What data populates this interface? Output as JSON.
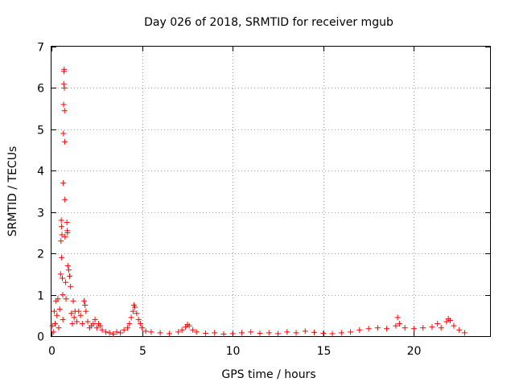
{
  "chart_data": {
    "type": "scatter",
    "title": "Day 026 of 2018, SRMTID for receiver mgub",
    "xlabel": "GPS time / hours",
    "ylabel": "SRMTID / TECUs",
    "xlim": [
      0,
      24.2
    ],
    "ylim": [
      0,
      7
    ],
    "grid": true,
    "marker": "+",
    "color": "#ff0000",
    "x_ticks": [
      0,
      5,
      10,
      15,
      20
    ],
    "y_ticks": [
      0,
      1,
      2,
      3,
      4,
      5,
      6,
      7
    ],
    "series": [
      {
        "name": "SRMTID",
        "points": [
          [
            0.05,
            0.25
          ],
          [
            0.1,
            0.1
          ],
          [
            0.15,
            0.6
          ],
          [
            0.2,
            0.3
          ],
          [
            0.25,
            0.85
          ],
          [
            0.3,
            0.5
          ],
          [
            0.35,
            0.9
          ],
          [
            0.4,
            0.2
          ],
          [
            0.45,
            0.65
          ],
          [
            0.5,
            1.5
          ],
          [
            0.52,
            2.3
          ],
          [
            0.54,
            2.8
          ],
          [
            0.55,
            2.65
          ],
          [
            0.56,
            1.9
          ],
          [
            0.58,
            2.45
          ],
          [
            0.6,
            1.4
          ],
          [
            0.62,
            1.0
          ],
          [
            0.63,
            0.4
          ],
          [
            0.65,
            3.7
          ],
          [
            0.66,
            4.9
          ],
          [
            0.67,
            5.6
          ],
          [
            0.68,
            6.1
          ],
          [
            0.69,
            6.4
          ],
          [
            0.7,
            6.45
          ],
          [
            0.71,
            6.0
          ],
          [
            0.72,
            5.45
          ],
          [
            0.73,
            4.7
          ],
          [
            0.74,
            3.3
          ],
          [
            0.75,
            2.4
          ],
          [
            0.78,
            1.3
          ],
          [
            0.8,
            0.9
          ],
          [
            0.85,
            2.75
          ],
          [
            0.87,
            2.55
          ],
          [
            0.88,
            2.5
          ],
          [
            0.9,
            1.7
          ],
          [
            0.95,
            1.6
          ],
          [
            1.0,
            1.45
          ],
          [
            1.05,
            1.2
          ],
          [
            1.1,
            0.55
          ],
          [
            1.15,
            0.3
          ],
          [
            1.2,
            0.85
          ],
          [
            1.25,
            0.45
          ],
          [
            1.3,
            0.6
          ],
          [
            1.4,
            0.35
          ],
          [
            1.5,
            0.6
          ],
          [
            1.6,
            0.5
          ],
          [
            1.7,
            0.3
          ],
          [
            1.8,
            0.85
          ],
          [
            1.85,
            0.75
          ],
          [
            1.9,
            0.6
          ],
          [
            2.0,
            0.35
          ],
          [
            2.1,
            0.2
          ],
          [
            2.2,
            0.25
          ],
          [
            2.3,
            0.3
          ],
          [
            2.4,
            0.4
          ],
          [
            2.5,
            0.2
          ],
          [
            2.6,
            0.3
          ],
          [
            2.7,
            0.25
          ],
          [
            2.8,
            0.15
          ],
          [
            3.0,
            0.1
          ],
          [
            3.2,
            0.08
          ],
          [
            3.4,
            0.05
          ],
          [
            3.6,
            0.1
          ],
          [
            3.8,
            0.08
          ],
          [
            4.0,
            0.15
          ],
          [
            4.2,
            0.2
          ],
          [
            4.3,
            0.3
          ],
          [
            4.4,
            0.45
          ],
          [
            4.5,
            0.6
          ],
          [
            4.55,
            0.75
          ],
          [
            4.6,
            0.7
          ],
          [
            4.7,
            0.55
          ],
          [
            4.8,
            0.4
          ],
          [
            4.9,
            0.3
          ],
          [
            5.0,
            0.2
          ],
          [
            5.2,
            0.12
          ],
          [
            5.5,
            0.1
          ],
          [
            6.0,
            0.08
          ],
          [
            6.5,
            0.06
          ],
          [
            7.0,
            0.1
          ],
          [
            7.2,
            0.15
          ],
          [
            7.4,
            0.22
          ],
          [
            7.5,
            0.28
          ],
          [
            7.6,
            0.25
          ],
          [
            7.8,
            0.15
          ],
          [
            8.0,
            0.1
          ],
          [
            8.5,
            0.07
          ],
          [
            9.0,
            0.08
          ],
          [
            9.5,
            0.05
          ],
          [
            10.0,
            0.06
          ],
          [
            10.5,
            0.08
          ],
          [
            11.0,
            0.1
          ],
          [
            11.5,
            0.07
          ],
          [
            12.0,
            0.08
          ],
          [
            12.5,
            0.06
          ],
          [
            13.0,
            0.1
          ],
          [
            13.5,
            0.08
          ],
          [
            14.0,
            0.12
          ],
          [
            14.5,
            0.09
          ],
          [
            15.0,
            0.07
          ],
          [
            15.5,
            0.06
          ],
          [
            16.0,
            0.08
          ],
          [
            16.5,
            0.1
          ],
          [
            17.0,
            0.15
          ],
          [
            17.5,
            0.18
          ],
          [
            18.0,
            0.2
          ],
          [
            18.5,
            0.18
          ],
          [
            19.0,
            0.25
          ],
          [
            19.1,
            0.45
          ],
          [
            19.2,
            0.3
          ],
          [
            19.5,
            0.2
          ],
          [
            20.0,
            0.18
          ],
          [
            20.5,
            0.2
          ],
          [
            21.0,
            0.22
          ],
          [
            21.3,
            0.3
          ],
          [
            21.5,
            0.2
          ],
          [
            21.8,
            0.35
          ],
          [
            21.9,
            0.42
          ],
          [
            22.0,
            0.38
          ],
          [
            22.2,
            0.25
          ],
          [
            22.5,
            0.15
          ],
          [
            22.8,
            0.08
          ]
        ]
      }
    ]
  }
}
